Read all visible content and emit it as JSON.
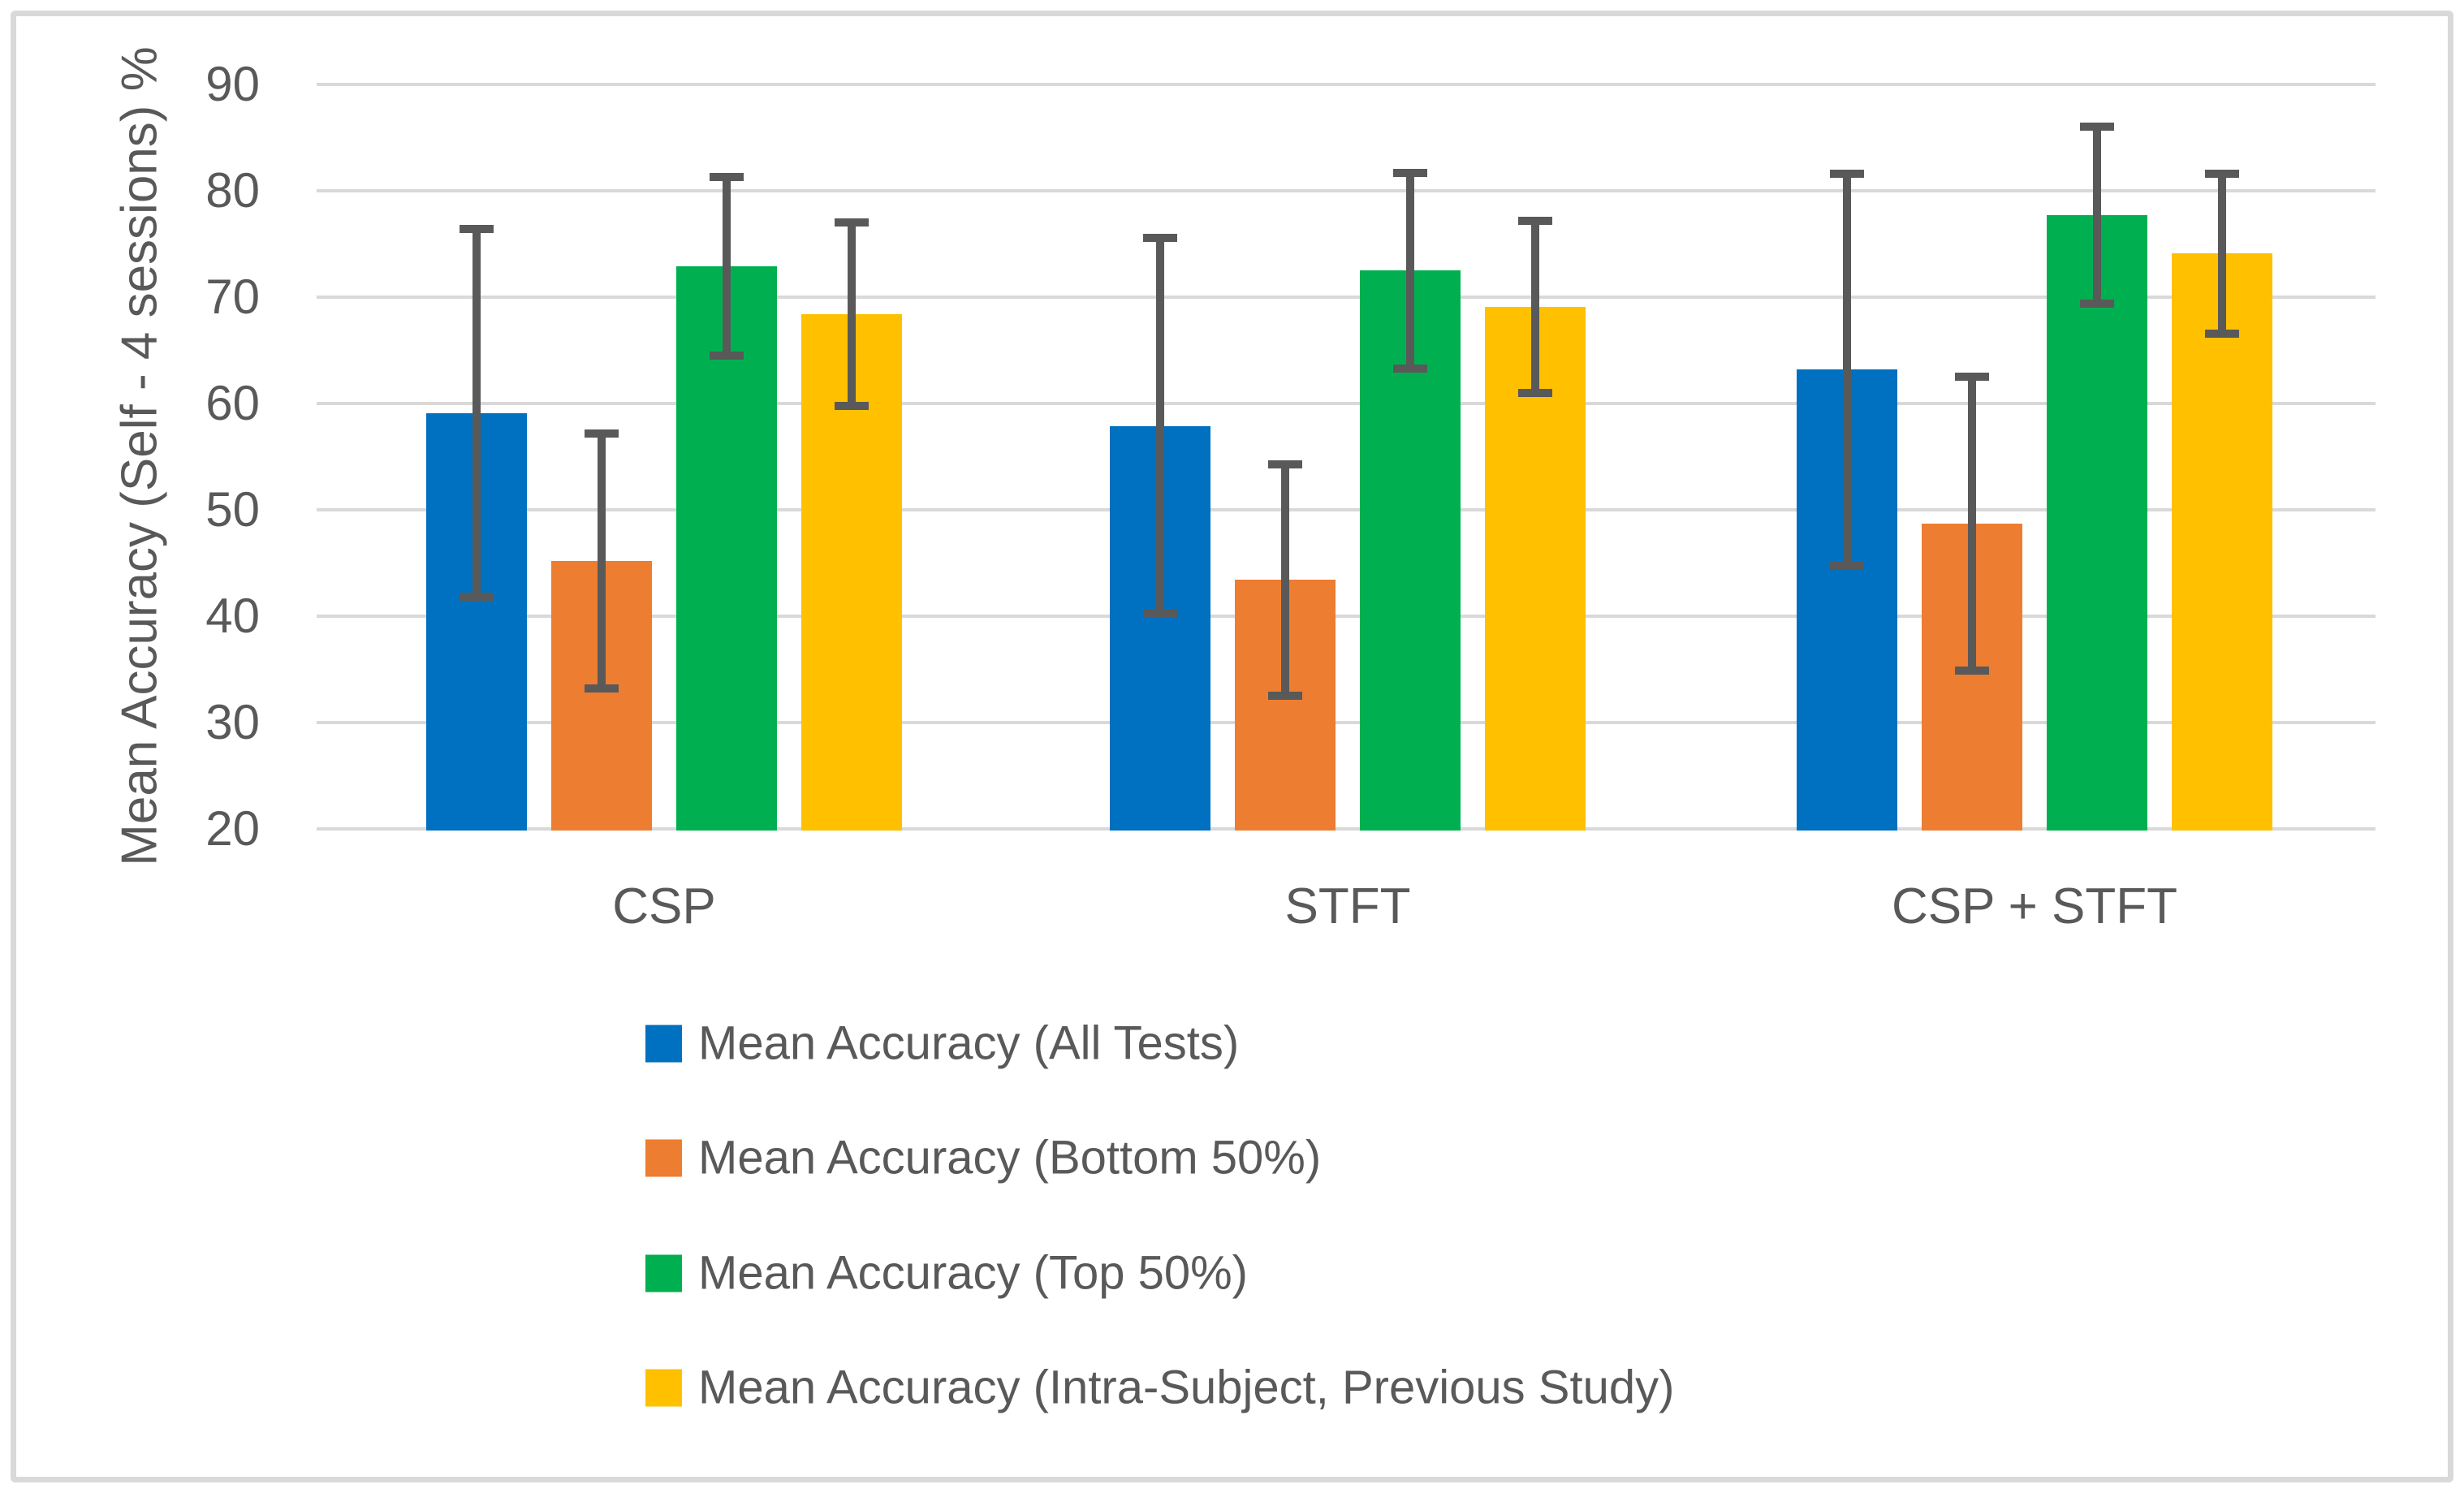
{
  "chart_data": {
    "type": "bar",
    "title": "",
    "xlabel": "",
    "ylabel": "Mean Accuracy (Self - 4 sessions) %",
    "ylim": [
      20,
      90
    ],
    "yticks": [
      20,
      30,
      40,
      50,
      60,
      70,
      80,
      90
    ],
    "grid": true,
    "legend_position": "bottom-left",
    "error_bars": true,
    "categories": [
      "CSP",
      "STFT",
      "CSP + STFT"
    ],
    "series": [
      {
        "name": "Mean Accuracy (All Tests)",
        "color": "#0070C0",
        "values": [
          59.1,
          57.9,
          63.2
        ],
        "errors": [
          17.3,
          17.7,
          18.4
        ]
      },
      {
        "name": "Mean Accuracy (Bottom 50%)",
        "color": "#ED7D31",
        "values": [
          45.2,
          43.4,
          48.7
        ],
        "errors": [
          12.0,
          10.9,
          13.8
        ]
      },
      {
        "name": "Mean Accuracy (Top 50%)",
        "color": "#00B050",
        "values": [
          72.9,
          72.5,
          77.7
        ],
        "errors": [
          8.4,
          9.2,
          8.3
        ]
      },
      {
        "name": "Mean Accuracy (Intra-Subject, Previous Study)",
        "color": "#FFC000",
        "values": [
          68.4,
          69.1,
          74.1
        ],
        "errors": [
          8.6,
          8.1,
          7.5
        ]
      }
    ]
  },
  "colors": {
    "background": "#FFFFFF",
    "frame_border": "#D9D9D9",
    "gridline": "#D9D9D9",
    "error_bar": "#595959",
    "text": "#595959"
  }
}
